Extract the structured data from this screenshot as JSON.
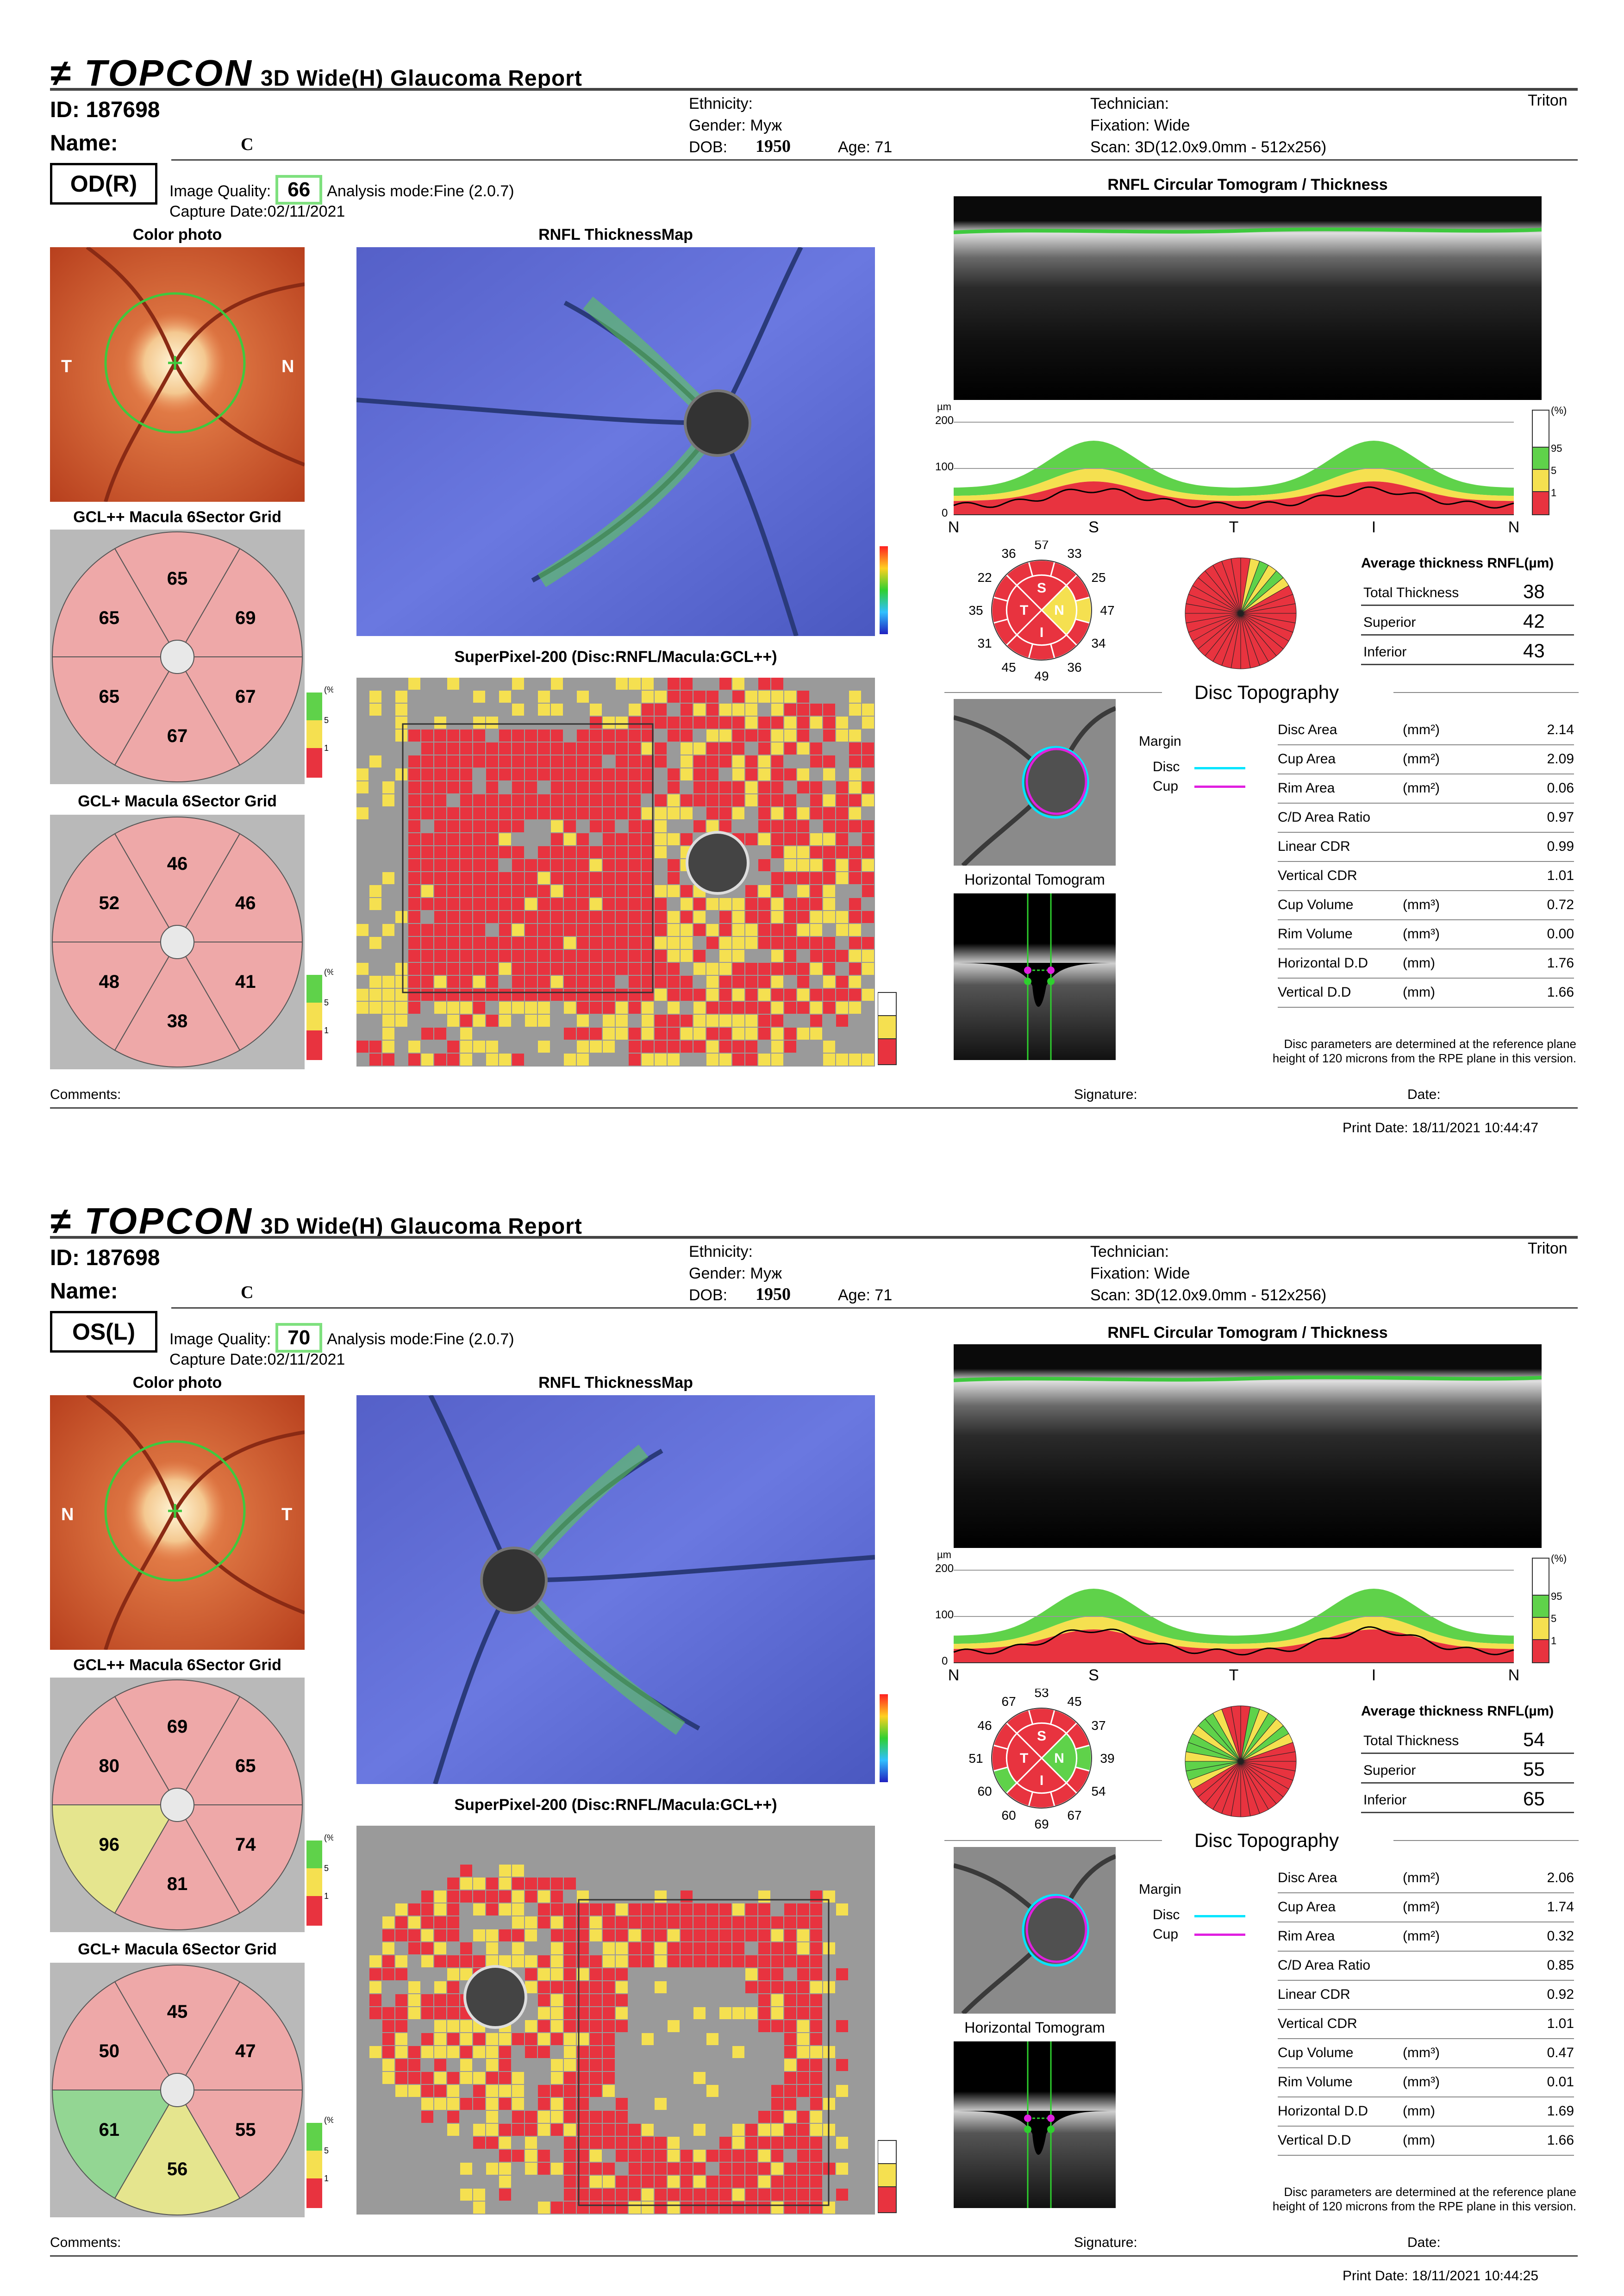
{
  "reports": [
    {
      "brand": "TOPCON",
      "title": "3D Wide(H) Glaucoma Report",
      "id_label": "ID:",
      "id": "187698",
      "name_label": "Name:",
      "name": "C",
      "ethnicity_label": "Ethnicity:",
      "gender_label": "Gender:",
      "gender": "Муж",
      "dob_label": "DOB:",
      "dob": "1950",
      "age_label": "Age:",
      "age": "71",
      "technician_label": "Technician:",
      "fixation": "Fixation: Wide",
      "scan": "Scan: 3D(12.0x9.0mm - 512x256)",
      "device": "Triton",
      "eye": "OD(R)",
      "iq_label": "Image Quality:",
      "image_quality": "66",
      "analysis_mode": "Analysis mode:Fine (2.0.7)",
      "capture_date": "Capture Date:02/11/2021",
      "color_photo_title": "Color photo",
      "rnfl_map_title": "RNFL ThicknessMap",
      "superpixel_title": "SuperPixel-200 (Disc:RNFL/Macula:GCL++)",
      "circ_title": "RNFL Circular Tomogram / Thickness",
      "gclpp_title": "GCL++ Macula 6Sector Grid",
      "gclp_title": "GCL+ Macula 6Sector Grid",
      "photo_left": "T",
      "photo_right": "N",
      "gclpp": {
        "top": "65",
        "upper_left": "65",
        "upper_right": "69",
        "lower_left": "65",
        "lower_right": "67",
        "bottom": "67"
      },
      "gclp": {
        "top": "46",
        "upper_left": "52",
        "upper_right": "46",
        "lower_left": "48",
        "lower_right": "41",
        "bottom": "38"
      },
      "gclpp_colors": {
        "top": "#f2a6a6",
        "upper_left": "#f2a6a6",
        "upper_right": "#f2a6a6",
        "lower_left": "#f2a6a6",
        "lower_right": "#f2a6a6",
        "bottom": "#f2a6a6"
      },
      "gclp_colors": {
        "top": "#f2a6a6",
        "upper_left": "#f2a6a6",
        "upper_right": "#f2a6a6",
        "lower_left": "#f2a6a6",
        "lower_right": "#f2a6a6",
        "bottom": "#f2a6a6"
      },
      "clock": {
        "c0": "57",
        "c1": "33",
        "c2": "25",
        "c3": "47",
        "c4": "34",
        "c5": "36",
        "c6": "49",
        "c7": "45",
        "c8": "31",
        "c9": "35",
        "c10": "22",
        "c11": "36"
      },
      "avg_title": "Average thickness RNFL(µm)",
      "total_label": "Total Thickness",
      "total": "38",
      "superior_label": "Superior",
      "superior": "42",
      "inferior_label": "Inferior",
      "inferior": "43",
      "disc_topo_title": "Disc Topography",
      "margin_label": "Margin",
      "disc_label": "Disc",
      "cup_label": "Cup",
      "horiz_tomo_title": "Horizontal Tomogram",
      "params": [
        {
          "name": "Disc Area",
          "unit": "(mm²)",
          "value": "2.14"
        },
        {
          "name": "Cup Area",
          "unit": "(mm²)",
          "value": "2.09"
        },
        {
          "name": "Rim Area",
          "unit": "(mm²)",
          "value": "0.06"
        },
        {
          "name": "C/D Area Ratio",
          "unit": "",
          "value": "0.97"
        },
        {
          "name": "Linear CDR",
          "unit": "",
          "value": "0.99"
        },
        {
          "name": "Vertical CDR",
          "unit": "",
          "value": "1.01"
        },
        {
          "name": "Cup Volume",
          "unit": "(mm³)",
          "value": "0.72"
        },
        {
          "name": "Rim Volume",
          "unit": "(mm³)",
          "value": "0.00"
        },
        {
          "name": "Horizontal D.D",
          "unit": "(mm)",
          "value": "1.76"
        },
        {
          "name": "Vertical D.D",
          "unit": "(mm)",
          "value": "1.66"
        }
      ],
      "footnote1": "Disc parameters are determined at the reference plane",
      "footnote2": "height of 120 microns from the RPE plane in this version.",
      "comments_label": "Comments:",
      "signature_label": "Signature:",
      "date_label": "Date:",
      "print_date": "Print Date: 18/11/2021 10:44:47",
      "graph_x": [
        "N",
        "S",
        "T",
        "I",
        "N"
      ],
      "graph_y": [
        "200",
        "100",
        "0"
      ],
      "graph_unit": "µm",
      "pct_legend": [
        "(%)",
        "95",
        "5",
        "1"
      ]
    },
    {
      "brand": "TOPCON",
      "title": "3D Wide(H) Glaucoma Report",
      "id_label": "ID:",
      "id": "187698",
      "name_label": "Name:",
      "name": "C",
      "ethnicity_label": "Ethnicity:",
      "gender_label": "Gender:",
      "gender": "Муж",
      "dob_label": "DOB:",
      "dob": "1950",
      "age_label": "Age:",
      "age": "71",
      "technician_label": "Technician:",
      "fixation": "Fixation: Wide",
      "scan": "Scan: 3D(12.0x9.0mm - 512x256)",
      "device": "Triton",
      "eye": "OS(L)",
      "iq_label": "Image Quality:",
      "image_quality": "70",
      "analysis_mode": "Analysis mode:Fine (2.0.7)",
      "capture_date": "Capture Date:02/11/2021",
      "color_photo_title": "Color photo",
      "rnfl_map_title": "RNFL ThicknessMap",
      "superpixel_title": "SuperPixel-200 (Disc:RNFL/Macula:GCL++)",
      "circ_title": "RNFL Circular Tomogram / Thickness",
      "gclpp_title": "GCL++ Macula 6Sector Grid",
      "gclp_title": "GCL+ Macula 6Sector Grid",
      "photo_left": "N",
      "photo_right": "T",
      "gclpp": {
        "top": "69",
        "upper_left": "80",
        "upper_right": "65",
        "lower_left": "96",
        "lower_right": "74",
        "bottom": "81"
      },
      "gclp": {
        "top": "45",
        "upper_left": "50",
        "upper_right": "47",
        "lower_left": "61",
        "lower_right": "55",
        "bottom": "56"
      },
      "gclpp_colors": {
        "top": "#f2a6a6",
        "upper_left": "#f2a6a6",
        "upper_right": "#f2a6a6",
        "lower_left": "#e8e88a",
        "lower_right": "#f2a6a6",
        "bottom": "#f2a6a6"
      },
      "gclp_colors": {
        "top": "#f2a6a6",
        "upper_left": "#f2a6a6",
        "upper_right": "#f2a6a6",
        "lower_left": "#8fd88f",
        "lower_right": "#f2a6a6",
        "bottom": "#e8e88a"
      },
      "clock": {
        "c0": "53",
        "c1": "45",
        "c2": "37",
        "c3": "39",
        "c4": "54",
        "c5": "67",
        "c6": "69",
        "c7": "60",
        "c8": "60",
        "c9": "51",
        "c10": "46",
        "c11": "67"
      },
      "avg_title": "Average thickness RNFL(µm)",
      "total_label": "Total Thickness",
      "total": "54",
      "superior_label": "Superior",
      "superior": "55",
      "inferior_label": "Inferior",
      "inferior": "65",
      "disc_topo_title": "Disc Topography",
      "margin_label": "Margin",
      "disc_label": "Disc",
      "cup_label": "Cup",
      "horiz_tomo_title": "Horizontal Tomogram",
      "params": [
        {
          "name": "Disc Area",
          "unit": "(mm²)",
          "value": "2.06"
        },
        {
          "name": "Cup Area",
          "unit": "(mm²)",
          "value": "1.74"
        },
        {
          "name": "Rim Area",
          "unit": "(mm²)",
          "value": "0.32"
        },
        {
          "name": "C/D Area Ratio",
          "unit": "",
          "value": "0.85"
        },
        {
          "name": "Linear CDR",
          "unit": "",
          "value": "0.92"
        },
        {
          "name": "Vertical CDR",
          "unit": "",
          "value": "1.01"
        },
        {
          "name": "Cup Volume",
          "unit": "(mm³)",
          "value": "0.47"
        },
        {
          "name": "Rim Volume",
          "unit": "(mm³)",
          "value": "0.01"
        },
        {
          "name": "Horizontal D.D",
          "unit": "(mm)",
          "value": "1.69"
        },
        {
          "name": "Vertical D.D",
          "unit": "(mm)",
          "value": "1.66"
        }
      ],
      "footnote1": "Disc parameters are determined at the reference plane",
      "footnote2": "height of 120 microns from the RPE plane in this version.",
      "comments_label": "Comments:",
      "signature_label": "Signature:",
      "date_label": "Date:",
      "print_date": "Print Date: 18/11/2021 10:44:25",
      "graph_x": [
        "N",
        "S",
        "T",
        "I",
        "N"
      ],
      "graph_y": [
        "200",
        "100",
        "0"
      ],
      "graph_unit": "µm",
      "pct_legend": [
        "(%)",
        "95",
        "5",
        "1"
      ]
    }
  ],
  "colors": {
    "red": "#e8333f",
    "yellow": "#f5e050",
    "green": "#5fd24a",
    "fundus": "#d85a34",
    "map_blue": "#5a66d8"
  }
}
